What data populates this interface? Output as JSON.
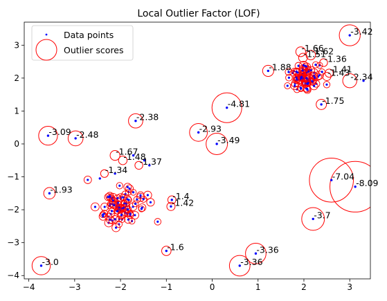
{
  "chart_data": {
    "type": "scatter",
    "title": "Local Outlier Factor (LOF)",
    "xlabel": "",
    "ylabel": "",
    "xlim": [
      -4.1,
      3.45
    ],
    "ylim": [
      -4.1,
      3.7
    ],
    "x_ticks": [
      -4,
      -3,
      -2,
      -1,
      0,
      1,
      2,
      3
    ],
    "y_ticks": [
      -4,
      -3,
      -2,
      -1,
      0,
      1,
      2,
      3
    ],
    "legend": {
      "placement": "upper-left",
      "entries": [
        "Data points",
        "Outlier scores"
      ]
    },
    "colors": {
      "points": "#0000ff",
      "circles": "#ff0000",
      "inliers": "#c80033"
    },
    "series": [
      {
        "name": "Data points",
        "x": [
          3.0,
          3.3,
          1.22,
          2.38,
          0.32,
          -1.67,
          -3.58,
          -2.98,
          -0.3,
          0.1,
          2.6,
          3.12,
          2.2,
          0.95,
          0.6,
          -3.73,
          -3.55,
          -1.72,
          -1.48,
          -1.37,
          -1.0,
          -2.12,
          -2.45,
          -0.88,
          -0.9
        ],
        "y": [
          3.3,
          1.92,
          2.22,
          1.2,
          1.1,
          0.7,
          0.25,
          0.17,
          0.35,
          0.0,
          -1.1,
          -1.3,
          -2.28,
          -3.33,
          -3.7,
          -3.7,
          -1.5,
          -0.35,
          -0.5,
          -0.65,
          -3.25,
          -0.9,
          -1.05,
          -1.7,
          -1.9
        ]
      }
    ],
    "annotations": [
      {
        "text": "3.42",
        "x": 3.0,
        "y": 3.3
      },
      {
        "text": "2.34",
        "x": 3.0,
        "y": 1.92
      },
      {
        "text": "1.88",
        "x": 1.22,
        "y": 2.22
      },
      {
        "text": "1.66",
        "x": 1.93,
        "y": 2.8
      },
      {
        "text": "1.62",
        "x": 2.15,
        "y": 2.7
      },
      {
        "text": "1.51",
        "x": 1.98,
        "y": 2.62
      },
      {
        "text": "1.36",
        "x": 2.43,
        "y": 2.47
      },
      {
        "text": "1.41",
        "x": 2.55,
        "y": 2.15
      },
      {
        "text": "1.43",
        "x": 2.5,
        "y": 2.05
      },
      {
        "text": "1.75",
        "x": 2.38,
        "y": 1.2
      },
      {
        "text": "4.81",
        "x": 0.32,
        "y": 1.1
      },
      {
        "text": "2.38",
        "x": -1.67,
        "y": 0.7
      },
      {
        "text": "3.09",
        "x": -3.58,
        "y": 0.25
      },
      {
        "text": "2.48",
        "x": -2.98,
        "y": 0.17
      },
      {
        "text": "2.93",
        "x": -0.3,
        "y": 0.35
      },
      {
        "text": "3.49",
        "x": 0.1,
        "y": 0.0
      },
      {
        "text": "1.67",
        "x": -2.12,
        "y": -0.35
      },
      {
        "text": "1.48",
        "x": -1.95,
        "y": -0.5
      },
      {
        "text": "1.37",
        "x": -1.6,
        "y": -0.65
      },
      {
        "text": "1.34",
        "x": -2.35,
        "y": -0.9
      },
      {
        "text": "1.93",
        "x": -3.55,
        "y": -1.5
      },
      {
        "text": "1.4",
        "x": -0.88,
        "y": -1.7
      },
      {
        "text": "1.42",
        "x": -0.9,
        "y": -1.9
      },
      {
        "text": "7.04",
        "x": 2.6,
        "y": -1.1
      },
      {
        "text": "8.09",
        "x": 3.12,
        "y": -1.3
      },
      {
        "text": "3.7",
        "x": 2.2,
        "y": -2.28
      },
      {
        "text": "1.6",
        "x": -1.0,
        "y": -3.25
      },
      {
        "text": "3.36",
        "x": 0.95,
        "y": -3.33
      },
      {
        "text": "3.36",
        "x": 0.6,
        "y": -3.7
      },
      {
        "text": "3.0",
        "x": -3.73,
        "y": -3.7
      }
    ]
  }
}
